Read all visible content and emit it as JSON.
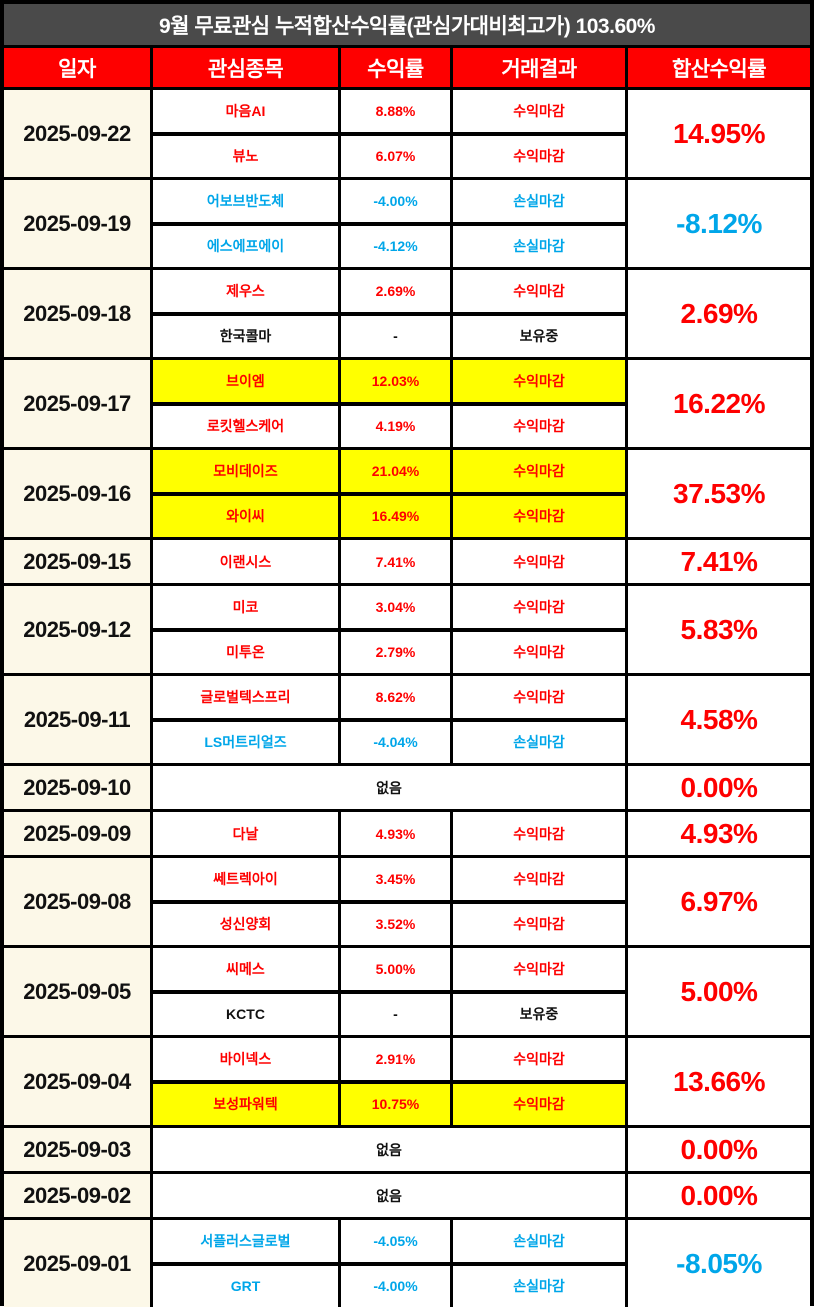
{
  "title": "9월 무료관심 누적합산수익률(관심가대비최고가) 103.60%",
  "colors": {
    "title_bg": "#4a4a4a",
    "header_bg": "#fe0000",
    "date_bg": "#fcf8e8",
    "profit_text": "#fe0000",
    "loss_text": "#00a6e9",
    "hold_text": "#111111",
    "highlight_bg": "#ffff00",
    "grid_border": "#000000"
  },
  "chart_data": {
    "type": "table",
    "title": "9월 무료관심 누적합산수익률(관심가대비최고가) 103.60%",
    "cumulative_total_pct": "103.60%",
    "columns": [
      "일자",
      "관심종목",
      "수익률",
      "거래결과",
      "합산수익률"
    ],
    "none_label": "없음",
    "groups": [
      {
        "date": "2025-09-22",
        "total": "14.95%",
        "total_cls": "pos",
        "stocks": [
          {
            "name": "마음AI",
            "ret": "8.88%",
            "result": "수익마감",
            "cls": "pos"
          },
          {
            "name": "뷰노",
            "ret": "6.07%",
            "result": "수익마감",
            "cls": "pos"
          }
        ]
      },
      {
        "date": "2025-09-19",
        "total": "-8.12%",
        "total_cls": "neg",
        "stocks": [
          {
            "name": "어보브반도체",
            "ret": "-4.00%",
            "result": "손실마감",
            "cls": "neg"
          },
          {
            "name": "에스에프에이",
            "ret": "-4.12%",
            "result": "손실마감",
            "cls": "neg"
          }
        ]
      },
      {
        "date": "2025-09-18",
        "total": "2.69%",
        "total_cls": "pos",
        "stocks": [
          {
            "name": "제우스",
            "ret": "2.69%",
            "result": "수익마감",
            "cls": "pos"
          },
          {
            "name": "한국콜마",
            "ret": "-",
            "result": "보유중",
            "cls": "hold"
          }
        ]
      },
      {
        "date": "2025-09-17",
        "total": "16.22%",
        "total_cls": "pos",
        "stocks": [
          {
            "name": "브이엠",
            "ret": "12.03%",
            "result": "수익마감",
            "cls": "pos hl"
          },
          {
            "name": "로킷헬스케어",
            "ret": "4.19%",
            "result": "수익마감",
            "cls": "pos"
          }
        ]
      },
      {
        "date": "2025-09-16",
        "total": "37.53%",
        "total_cls": "pos",
        "stocks": [
          {
            "name": "모비데이즈",
            "ret": "21.04%",
            "result": "수익마감",
            "cls": "pos hl"
          },
          {
            "name": "와이씨",
            "ret": "16.49%",
            "result": "수익마감",
            "cls": "pos hl"
          }
        ]
      },
      {
        "date": "2025-09-15",
        "total": "7.41%",
        "total_cls": "pos",
        "stocks": [
          {
            "name": "이랜시스",
            "ret": "7.41%",
            "result": "수익마감",
            "cls": "pos"
          }
        ]
      },
      {
        "date": "2025-09-12",
        "total": "5.83%",
        "total_cls": "pos",
        "stocks": [
          {
            "name": "미코",
            "ret": "3.04%",
            "result": "수익마감",
            "cls": "pos"
          },
          {
            "name": "미투온",
            "ret": "2.79%",
            "result": "수익마감",
            "cls": "pos"
          }
        ]
      },
      {
        "date": "2025-09-11",
        "total": "4.58%",
        "total_cls": "pos",
        "stocks": [
          {
            "name": "글로벌텍스프리",
            "ret": "8.62%",
            "result": "수익마감",
            "cls": "pos"
          },
          {
            "name": "LS머트리얼즈",
            "ret": "-4.04%",
            "result": "손실마감",
            "cls": "neg"
          }
        ]
      },
      {
        "date": "2025-09-10",
        "total": "0.00%",
        "total_cls": "pos",
        "none": "없음",
        "stocks": []
      },
      {
        "date": "2025-09-09",
        "total": "4.93%",
        "total_cls": "pos",
        "stocks": [
          {
            "name": "다날",
            "ret": "4.93%",
            "result": "수익마감",
            "cls": "pos"
          }
        ]
      },
      {
        "date": "2025-09-08",
        "total": "6.97%",
        "total_cls": "pos",
        "stocks": [
          {
            "name": "쎄트렉아이",
            "ret": "3.45%",
            "result": "수익마감",
            "cls": "pos"
          },
          {
            "name": "성신양회",
            "ret": "3.52%",
            "result": "수익마감",
            "cls": "pos"
          }
        ]
      },
      {
        "date": "2025-09-05",
        "total": "5.00%",
        "total_cls": "pos",
        "stocks": [
          {
            "name": "씨메스",
            "ret": "5.00%",
            "result": "수익마감",
            "cls": "pos"
          },
          {
            "name": "KCTC",
            "ret": "-",
            "result": "보유중",
            "cls": "hold"
          }
        ]
      },
      {
        "date": "2025-09-04",
        "total": "13.66%",
        "total_cls": "pos",
        "stocks": [
          {
            "name": "바이넥스",
            "ret": "2.91%",
            "result": "수익마감",
            "cls": "pos"
          },
          {
            "name": "보성파워텍",
            "ret": "10.75%",
            "result": "수익마감",
            "cls": "pos hl"
          }
        ]
      },
      {
        "date": "2025-09-03",
        "total": "0.00%",
        "total_cls": "pos",
        "none": "없음",
        "stocks": []
      },
      {
        "date": "2025-09-02",
        "total": "0.00%",
        "total_cls": "pos",
        "none": "없음",
        "stocks": []
      },
      {
        "date": "2025-09-01",
        "total": "-8.05%",
        "total_cls": "neg",
        "stocks": [
          {
            "name": "서플러스글로벌",
            "ret": "-4.05%",
            "result": "손실마감",
            "cls": "neg"
          },
          {
            "name": "GRT",
            "ret": "-4.00%",
            "result": "손실마감",
            "cls": "neg"
          }
        ]
      }
    ]
  }
}
